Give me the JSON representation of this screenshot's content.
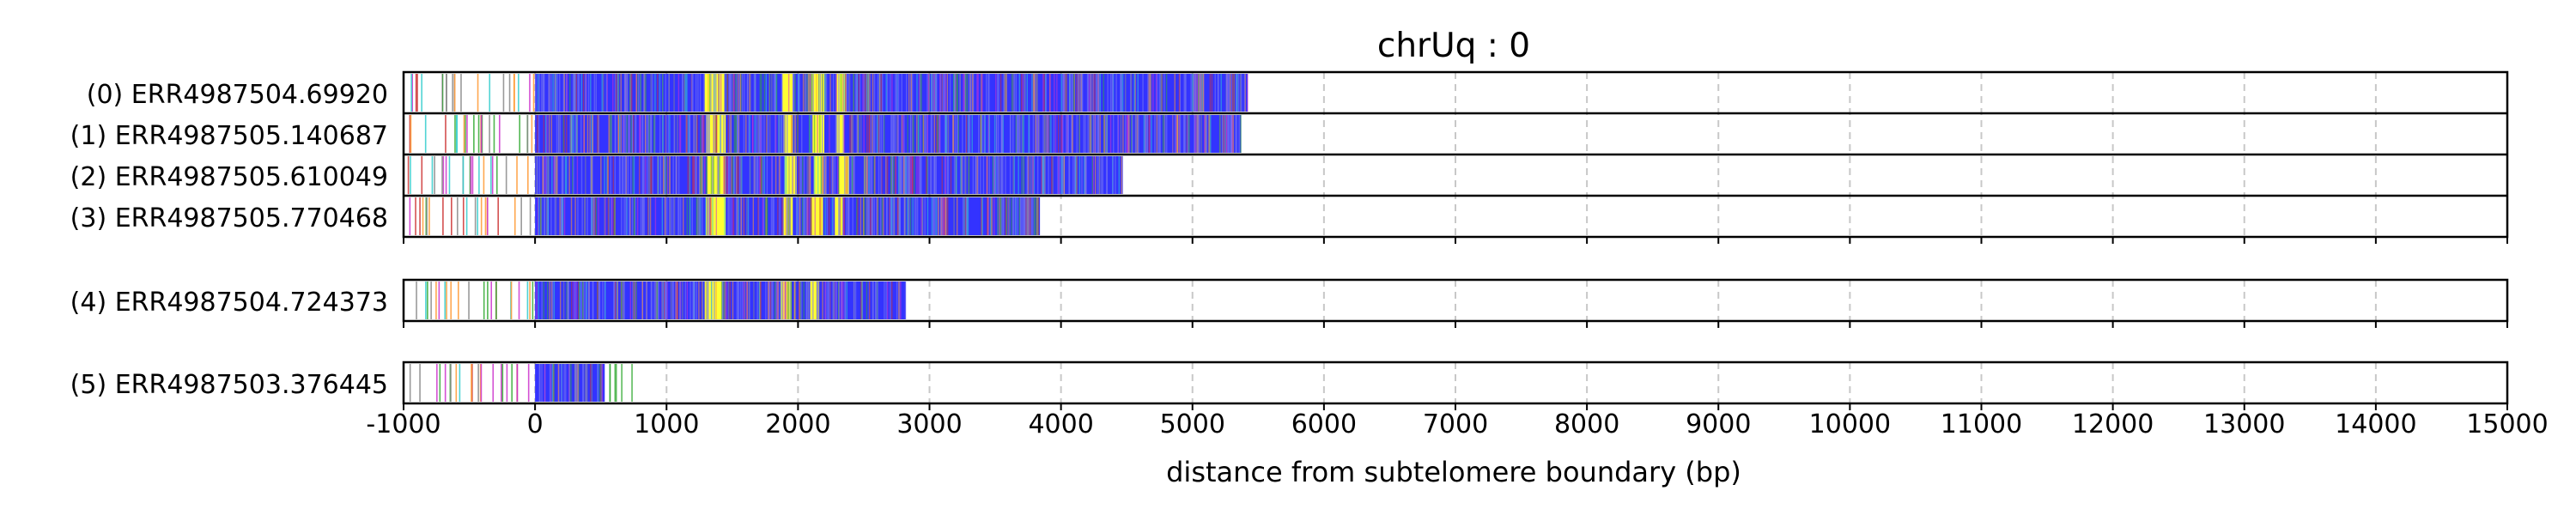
{
  "chart_data": {
    "type": "read-track",
    "title": "chrUq : 0",
    "xlabel": "distance from subtelomere boundary (bp)",
    "ylabel": "",
    "xlim": [
      -1000,
      15000
    ],
    "xticks": [
      -1000,
      0,
      1000,
      2000,
      3000,
      4000,
      5000,
      6000,
      7000,
      8000,
      9000,
      10000,
      11000,
      12000,
      13000,
      14000,
      15000
    ],
    "xtick_labels": [
      "-1000",
      "0",
      "1000",
      "2000",
      "3000",
      "4000",
      "5000",
      "6000",
      "7000",
      "8000",
      "9000",
      "10000",
      "11000",
      "12000",
      "13000",
      "14000",
      "15000"
    ],
    "grid": "vertical dashed",
    "colors": {
      "telomere_repeat": "#3333ff",
      "interstitial_variant": "#ffff33",
      "other_variants": [
        "#33cccc",
        "#cc33cc",
        "#33aa33",
        "#cc3333",
        "#888888",
        "#ff9933"
      ],
      "grid": "#c8c8c8"
    },
    "groups": [
      {
        "reads": [
          {
            "label": "(0) ERR4987504.69920",
            "start": -1000,
            "end": 5420,
            "yellow_bands": [
              [
                1290,
                1440
              ],
              [
                1880,
                1960
              ],
              [
                2100,
                2200
              ],
              [
                2290,
                2370
              ]
            ]
          },
          {
            "label": "(1) ERR4987505.140687",
            "start": -1000,
            "end": 5370,
            "yellow_bands": [
              [
                1300,
                1450
              ],
              [
                1890,
                1960
              ],
              [
                2110,
                2200
              ],
              [
                2290,
                2350
              ]
            ]
          },
          {
            "label": "(2) ERR4987505.610049",
            "start": -1000,
            "end": 4470,
            "yellow_bands": [
              [
                1310,
                1450
              ],
              [
                1900,
                1990
              ],
              [
                2120,
                2200
              ],
              [
                2310,
                2390
              ]
            ]
          },
          {
            "label": "(3) ERR4987505.770468",
            "start": -1000,
            "end": 3840,
            "yellow_bands": [
              [
                1300,
                1450
              ],
              [
                1890,
                1960
              ],
              [
                2100,
                2190
              ],
              [
                2280,
                2340
              ]
            ]
          }
        ]
      },
      {
        "reads": [
          {
            "label": "(4) ERR4987504.724373",
            "start": -1000,
            "end": 2820,
            "yellow_bands": [
              [
                1290,
                1430
              ],
              [
                1870,
                1950
              ],
              [
                2090,
                2160
              ]
            ]
          }
        ]
      },
      {
        "reads": [
          {
            "label": "(5) ERR4987503.376445",
            "start": -1000,
            "end": 750,
            "yellow_bands": []
          }
        ]
      }
    ]
  }
}
